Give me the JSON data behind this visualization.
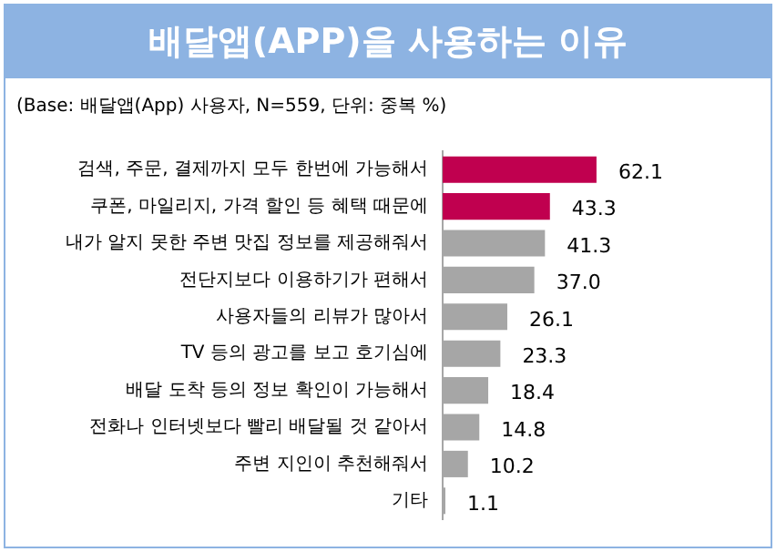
{
  "chart_data": {
    "type": "bar",
    "orientation": "horizontal",
    "title": "배달앱(APP)을 사용하는 이유",
    "subtitle": "(Base: 배달앱(App) 사용자, N=559, 단위: 중복 %)",
    "categories": [
      "검색, 주문, 결제까지 모두 한번에 가능해서",
      "쿠폰, 마일리지, 가격 할인 등 혜택 때문에",
      "내가 알지 못한 주변 맛집 정보를 제공해줘서",
      "전단지보다 이용하기가 편해서",
      "사용자들의 리뷰가 많아서",
      "TV 등의 광고를 보고 호기심에",
      "배달 도착 등의 정보 확인이 가능해서",
      "전화나 인터넷보다 빨리 배달될 것 같아서",
      "주변 지인이 추천해줘서",
      "기타"
    ],
    "values": [
      62.1,
      43.3,
      41.3,
      37.0,
      26.1,
      23.3,
      18.4,
      14.8,
      10.2,
      1.1
    ],
    "value_labels": [
      "62.1",
      "43.3",
      "41.3",
      "37.0",
      "26.1",
      "23.3",
      "18.4",
      "14.8",
      "10.2",
      "1.1"
    ],
    "colors": [
      "#c0004f",
      "#c0004f",
      "#a6a6a6",
      "#a6a6a6",
      "#a6a6a6",
      "#a6a6a6",
      "#a6a6a6",
      "#a6a6a6",
      "#a6a6a6",
      "#a6a6a6"
    ],
    "legend": false
  }
}
